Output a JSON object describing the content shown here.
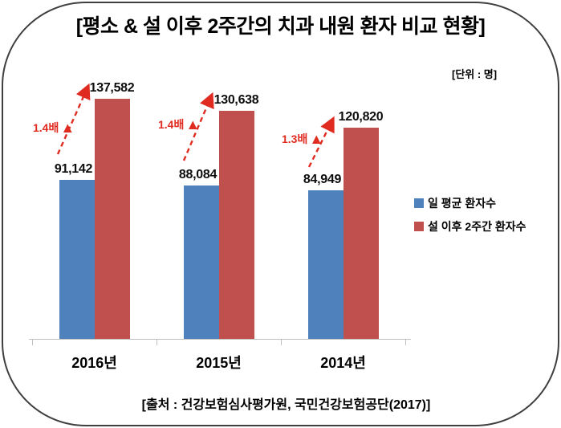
{
  "title": "[평소 & 설 이후 2주간의 치과 내원 환자 비교 현황]",
  "unit_label": "[단위 : 명]",
  "source": "[출처 : 건강보험심사평가원, 국민건강보험공단(2017)]",
  "colors": {
    "series_blue": "#4F81BD",
    "series_red": "#C0504D",
    "annotation_red": "#E02B20",
    "axis_gray": "#BFBFBF",
    "frame_border": "#3F3F3F"
  },
  "legend": {
    "items": [
      {
        "label": "일 평균 환자수",
        "color": "#4F81BD"
      },
      {
        "label": "설 이후 2주간 환자수",
        "color": "#C0504D"
      }
    ]
  },
  "chart_data": {
    "type": "bar",
    "title": "[평소 & 설 이후 2주간의 치과 내원 환자 비교 현황]",
    "unit": "명",
    "categories": [
      "2016년",
      "2015년",
      "2014년"
    ],
    "series": [
      {
        "name": "일 평균 환자수",
        "color": "#4F81BD",
        "values": [
          91142,
          88084,
          84949
        ],
        "labels": [
          "91,142",
          "88,084",
          "84,949"
        ]
      },
      {
        "name": "설 이후 2주간 환자수",
        "color": "#C0504D",
        "values": [
          137582,
          130638,
          120820
        ],
        "labels": [
          "137,582",
          "130,638",
          "120,820"
        ]
      }
    ],
    "annotations": [
      {
        "label": "1.4배",
        "marker": "▲"
      },
      {
        "label": "1.4배",
        "marker": "▲"
      },
      {
        "label": "1.3배",
        "marker": "▲"
      }
    ],
    "ylim": [
      0,
      143000
    ],
    "grid": false,
    "y_axis_visible": false,
    "legend_position": "right"
  }
}
